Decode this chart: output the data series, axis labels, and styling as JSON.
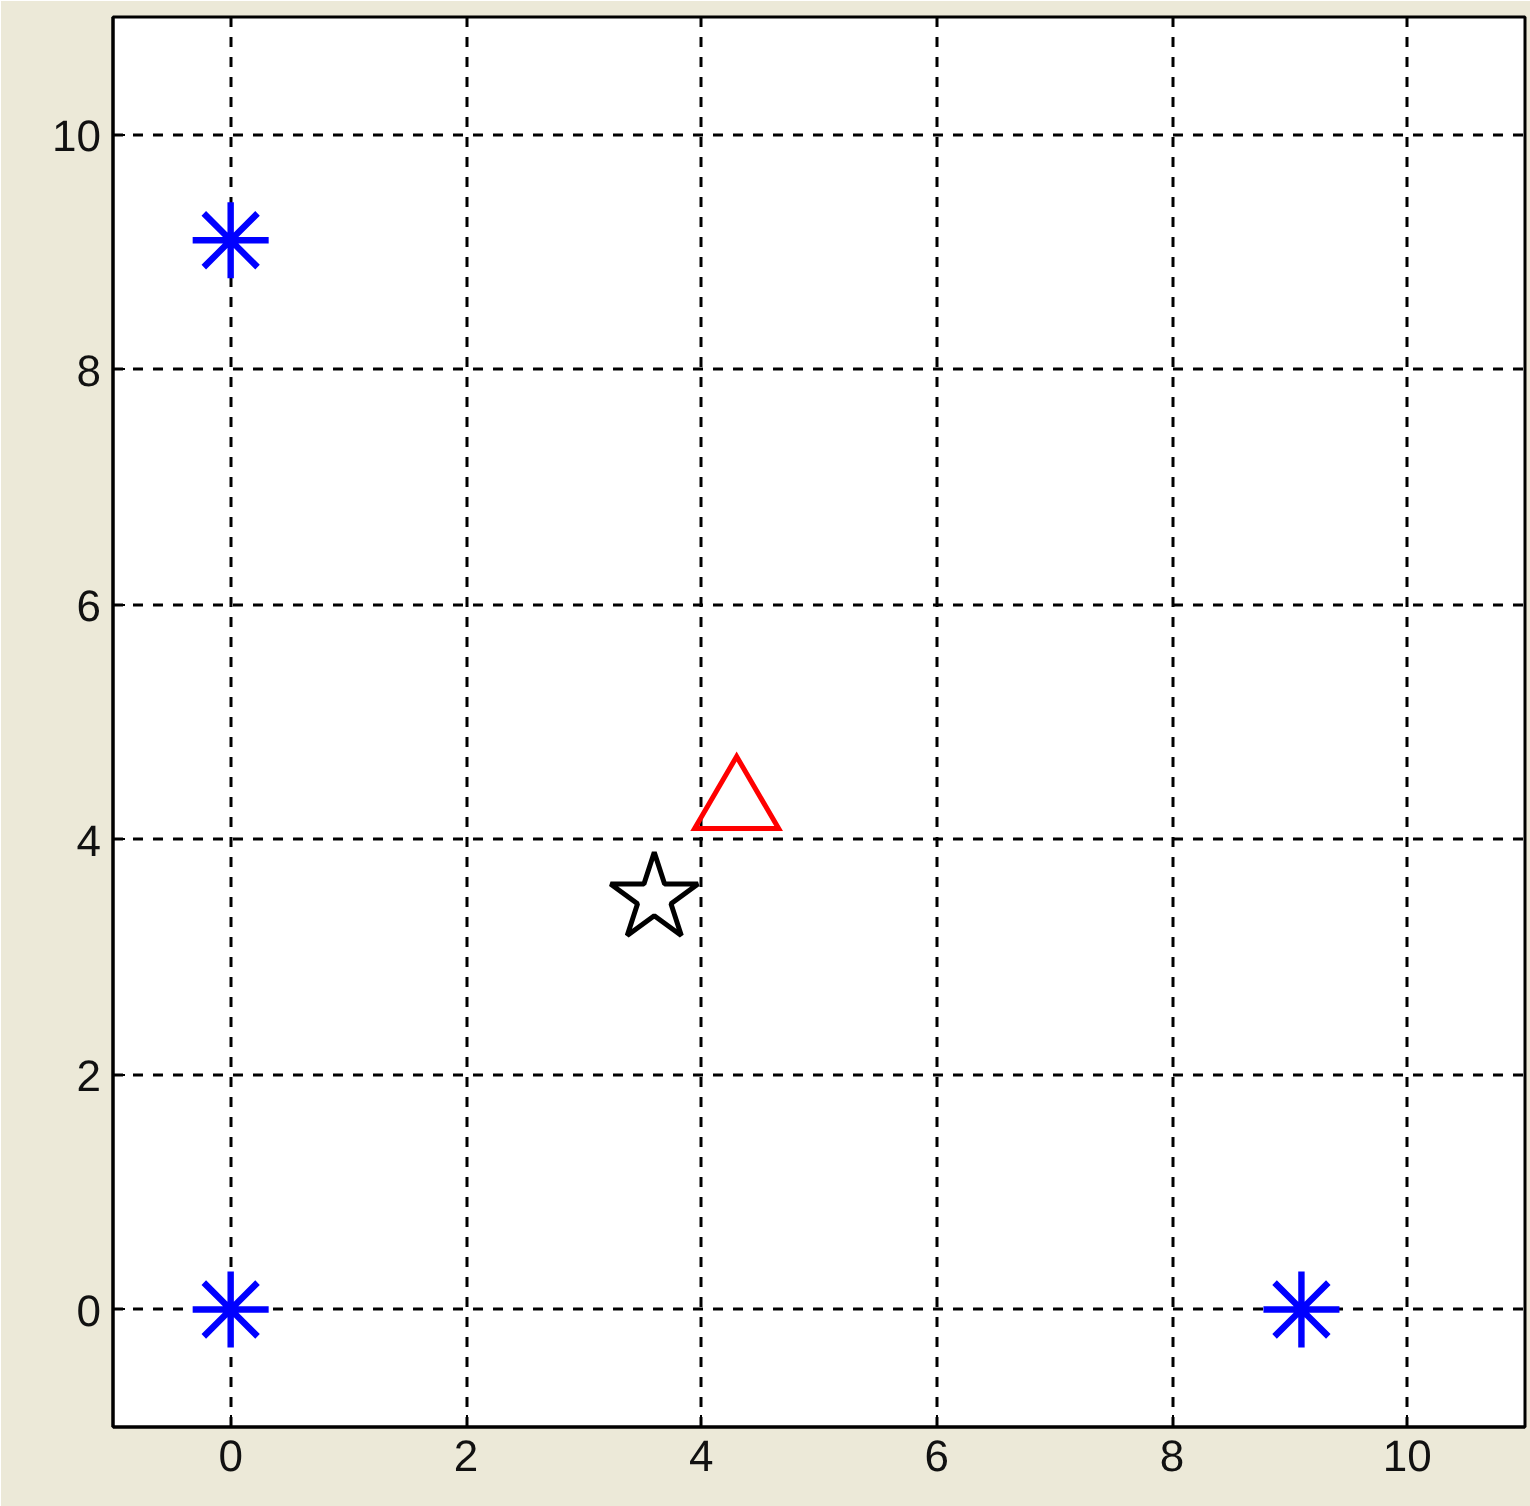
{
  "chart_data": {
    "type": "scatter",
    "series": [
      {
        "color": "#0000ff",
        "marker": "cross",
        "x": [
          0,
          0,
          9.1
        ],
        "values": [
          0,
          9.1,
          0
        ]
      },
      {
        "color": "#ff0000",
        "marker": "triangle",
        "x": [
          4.3
        ],
        "values": [
          4.4
        ]
      },
      {
        "color": "#000000",
        "marker": "star",
        "x": [
          3.6
        ],
        "values": [
          3.5
        ]
      }
    ],
    "xlim": [
      -1,
      11
    ],
    "ylim": [
      -1,
      11
    ],
    "xticks": [
      0,
      2,
      4,
      6,
      8,
      10
    ],
    "yticks": [
      0,
      2,
      4,
      6,
      8,
      10
    ],
    "grid": true
  }
}
